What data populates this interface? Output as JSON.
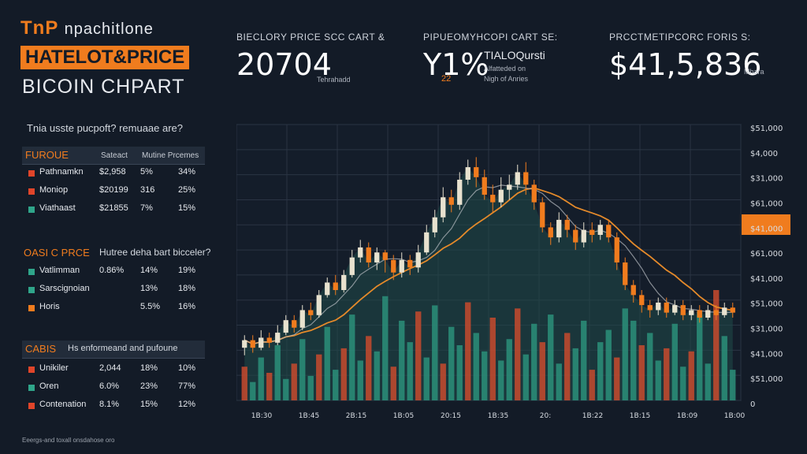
{
  "title": {
    "line1_accent": "TnP",
    "line1_rest": "npachitlone",
    "line2": "HATELOT&PRICE",
    "line3": "BICOIN CHPART"
  },
  "header": {
    "stat1": {
      "label": "BIECLORY PRICE SCC CART &",
      "value": "20704",
      "caption": "Tehrahadd"
    },
    "stat2": {
      "label": "PIPUEOMYHCOPI CART SE:",
      "value": "Y1%",
      "sub": "22",
      "line1": "TIALOQursti",
      "line2": "Alfatteded on",
      "line3": "Nigh of Anries"
    },
    "stat3": {
      "label": "PRCCTMETIPCORC FORIS S:",
      "value": "$41,5,836",
      "caption": "Mhara"
    }
  },
  "left": {
    "question": "Tnia usste pucpoft? remuaae are?",
    "section1": {
      "title": "FUROUE",
      "columns": [
        "Sateact",
        "Mutine Prcemes"
      ],
      "rows": [
        {
          "name": "Pathnamkn",
          "a": "$2,958",
          "b": "5%",
          "c": "34%",
          "color": "#e0452a"
        },
        {
          "name": "Moniop",
          "a": "$20199",
          "b": "316",
          "c": "25%",
          "color": "#e0452a"
        },
        {
          "name": "Viathaast",
          "a": "$21855",
          "b": "7%",
          "c": "15%",
          "color": "#2fa58a"
        }
      ]
    },
    "section2": {
      "title": "OASI C PRCE",
      "subtitle": "Hutree deha bart bicceler?",
      "rows": [
        {
          "name": "Vatlimman",
          "a": "0.86%",
          "b": "14%",
          "c": "19%",
          "color": "#2fa58a"
        },
        {
          "name": "Sarscignoian",
          "a": "",
          "b": "13%",
          "c": "18%",
          "color": "#2fa58a"
        },
        {
          "name": "Horis",
          "a": "",
          "b": "5.5%",
          "c": "16%",
          "color": "#f07c1e"
        }
      ]
    },
    "section3": {
      "title": "CABIS",
      "subtitle": "Hs enformeand and pufoune",
      "rows": [
        {
          "name": "Unikiler",
          "a": "2,044",
          "b": "18%",
          "c": "10%",
          "color": "#e0452a"
        },
        {
          "name": "Oren",
          "a": "6.0%",
          "b": "23%",
          "c": "77%",
          "color": "#2fa58a"
        },
        {
          "name": "Contenation",
          "a": "8.1%",
          "b": "15%",
          "c": "12%",
          "color": "#e0452a"
        }
      ]
    },
    "footer": "Eeergs-and toxall onsdahose oro"
  },
  "chart_data": {
    "type": "candlestick",
    "y_axis_labels": [
      "$51,000",
      "$4,000",
      "$31,000",
      "$61,000",
      "$41,000",
      "$61,000",
      "$41,000",
      "$51,000",
      "$31,000",
      "$41,000",
      "$51,000",
      "0"
    ],
    "highlighted_y_label": "$41,000",
    "x_axis_labels": [
      "1B:30",
      "1B:45",
      "2B:15",
      "1B:05",
      "20:15",
      "1B:35",
      "20:",
      "1B:22",
      "1B:15",
      "1B:09",
      "1B:00"
    ],
    "ylim": [
      0,
      11
    ],
    "candles": [
      [
        2.1,
        2.4,
        1.8,
        2.6
      ],
      [
        2.4,
        2.1,
        1.9,
        2.6
      ],
      [
        2.1,
        2.5,
        2.0,
        2.8
      ],
      [
        2.5,
        2.3,
        2.1,
        2.7
      ],
      [
        2.3,
        2.7,
        2.2,
        3.0
      ],
      [
        2.7,
        3.2,
        2.6,
        3.4
      ],
      [
        3.2,
        2.9,
        2.7,
        3.4
      ],
      [
        2.9,
        3.6,
        2.8,
        3.8
      ],
      [
        3.6,
        3.4,
        3.2,
        3.9
      ],
      [
        3.4,
        4.2,
        3.3,
        4.4
      ],
      [
        4.2,
        4.7,
        4.1,
        4.9
      ],
      [
        4.7,
        4.4,
        4.2,
        5.0
      ],
      [
        4.4,
        5.0,
        4.3,
        5.2
      ],
      [
        5.0,
        5.7,
        4.9,
        6.0
      ],
      [
        5.7,
        6.1,
        5.5,
        6.4
      ],
      [
        6.1,
        5.5,
        5.3,
        6.3
      ],
      [
        5.5,
        5.9,
        5.2,
        6.1
      ],
      [
        5.9,
        5.6,
        5.1,
        6.0
      ],
      [
        5.6,
        5.1,
        4.8,
        5.8
      ],
      [
        5.1,
        5.6,
        4.9,
        5.9
      ],
      [
        5.6,
        5.3,
        5.0,
        5.8
      ],
      [
        5.3,
        5.9,
        5.1,
        6.2
      ],
      [
        5.9,
        6.7,
        5.8,
        7.0
      ],
      [
        6.7,
        7.3,
        6.5,
        7.6
      ],
      [
        7.3,
        8.1,
        7.1,
        8.5
      ],
      [
        8.1,
        7.8,
        7.5,
        8.4
      ],
      [
        7.8,
        8.8,
        7.6,
        9.1
      ],
      [
        8.8,
        9.3,
        8.6,
        9.6
      ],
      [
        9.3,
        8.9,
        8.5,
        9.7
      ],
      [
        8.9,
        8.2,
        8.0,
        9.2
      ],
      [
        8.2,
        7.9,
        7.5,
        8.6
      ],
      [
        7.9,
        8.4,
        7.7,
        8.9
      ],
      [
        8.4,
        8.6,
        8.0,
        9.0
      ],
      [
        8.6,
        9.1,
        8.4,
        9.4
      ],
      [
        9.1,
        8.6,
        8.2,
        9.5
      ],
      [
        8.6,
        7.9,
        7.6,
        8.8
      ],
      [
        7.9,
        6.9,
        6.7,
        8.1
      ],
      [
        6.9,
        6.5,
        6.2,
        7.1
      ],
      [
        6.5,
        7.2,
        6.3,
        7.5
      ],
      [
        7.2,
        6.8,
        6.5,
        7.4
      ],
      [
        6.8,
        6.3,
        6.0,
        7.0
      ],
      [
        6.3,
        6.8,
        6.1,
        7.1
      ],
      [
        6.8,
        6.6,
        6.3,
        7.1
      ],
      [
        6.6,
        7.0,
        6.4,
        7.2
      ],
      [
        7.0,
        6.5,
        6.3,
        7.2
      ],
      [
        6.5,
        5.5,
        5.2,
        6.7
      ],
      [
        5.5,
        4.6,
        4.4,
        5.7
      ],
      [
        4.6,
        4.2,
        3.9,
        4.8
      ],
      [
        4.2,
        3.8,
        3.5,
        4.4
      ],
      [
        3.8,
        3.6,
        3.3,
        4.0
      ],
      [
        3.6,
        3.9,
        3.4,
        4.1
      ],
      [
        3.9,
        3.5,
        3.3,
        4.1
      ],
      [
        3.5,
        3.8,
        3.4,
        4.0
      ],
      [
        3.8,
        3.4,
        3.2,
        4.0
      ],
      [
        3.4,
        3.6,
        3.2,
        3.8
      ],
      [
        3.6,
        3.3,
        3.1,
        3.8
      ],
      [
        3.3,
        3.6,
        3.2,
        3.8
      ],
      [
        3.6,
        3.4,
        3.2,
        3.8
      ],
      [
        3.4,
        3.7,
        3.3,
        3.9
      ],
      [
        3.7,
        3.5,
        3.3,
        3.9
      ]
    ],
    "volume": [
      1.1,
      0.6,
      1.4,
      0.9,
      1.8,
      0.7,
      1.2,
      2.0,
      0.8,
      1.5,
      2.4,
      1.0,
      1.7,
      2.8,
      1.3,
      2.1,
      1.6,
      3.4,
      1.1,
      2.6,
      1.9,
      2.9,
      1.4,
      3.1,
      1.2,
      2.4,
      1.8,
      3.2,
      2.2,
      1.6,
      2.7,
      1.3,
      2.0,
      3.0,
      1.5,
      2.5,
      1.9,
      2.8,
      1.2,
      2.2,
      1.7,
      2.6,
      1.0,
      1.9,
      2.3,
      1.4,
      3.0,
      2.6,
      1.8,
      2.2,
      1.3,
      1.7,
      2.5,
      1.1,
      1.6,
      2.9,
      1.2,
      3.6,
      2.1,
      1.0
    ]
  },
  "colors": {
    "up": "#e8e2cf",
    "down": "#f07c1e",
    "accent": "#f07c1e",
    "vol_green": "#2c8f7a",
    "vol_red": "#c84a2e"
  }
}
